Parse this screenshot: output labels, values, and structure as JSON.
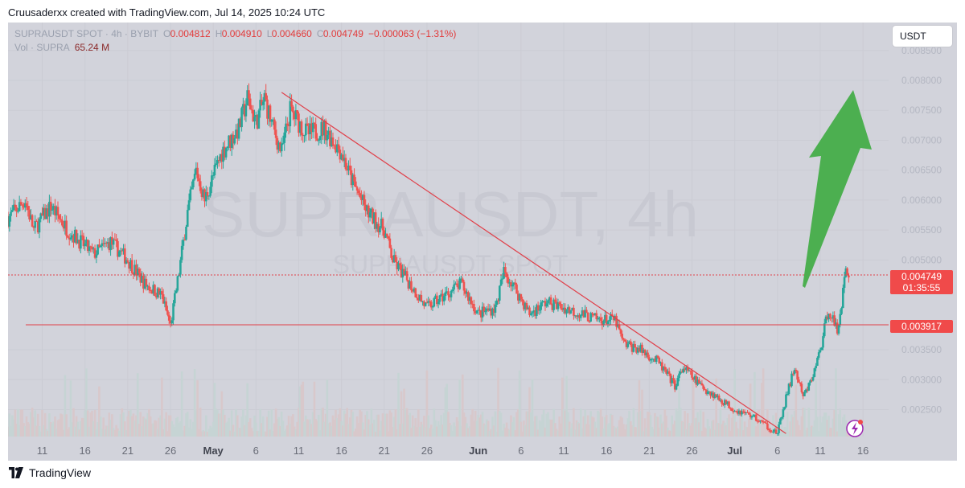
{
  "caption": "Cruusaderxx created with TradingView.com, Jul 14, 2025 10:24 UTC",
  "legend": {
    "symbol": "SUPRAUSDT SPOT · 4h · BYBIT",
    "o_label": "O",
    "o_value": "0.004812",
    "h_label": "H",
    "h_value": "0.004910",
    "l_label": "L",
    "l_value": "0.004660",
    "c_label": "C",
    "c_value": "0.004749",
    "change": "−0.000063 (−1.31%)",
    "vol_label": "Vol · SUPRA",
    "vol_value": "65.24 M"
  },
  "currency_button": "USDT",
  "watermark": {
    "line1": "SUPRAUSDT, 4h",
    "line2": "SUPRAUSDT SPOT"
  },
  "price_labels": {
    "last_price": "0.004749",
    "countdown": "01:35:55",
    "level": "0.003917"
  },
  "brand": "TradingView",
  "colors": {
    "background": "#d2d3db",
    "up": "#26a69a",
    "down": "#ef5350",
    "trendline": "#e0404a",
    "arrow": "#4caf50",
    "label_red": "#f04a4a"
  },
  "chart_data": {
    "type": "candlestick",
    "symbol": "SUPRAUSDT",
    "exchange": "BYBIT",
    "interval": "4h",
    "yaxis": {
      "ticks": [
        "0.008500",
        "0.008000",
        "0.007500",
        "0.007000",
        "0.006500",
        "0.006000",
        "0.005500",
        "0.005000",
        "0.003500",
        "0.003000",
        "0.002500"
      ],
      "tick_values": [
        0.0085,
        0.008,
        0.0075,
        0.007,
        0.0065,
        0.006,
        0.0055,
        0.005,
        0.0035,
        0.003,
        0.0025
      ],
      "range": [
        0.00205,
        0.0089
      ]
    },
    "xaxis": {
      "ticks": [
        "11",
        "16",
        "21",
        "26",
        "May",
        "6",
        "11",
        "16",
        "21",
        "26",
        "Jun",
        "6",
        "11",
        "16",
        "21",
        "26",
        "Jul",
        "6",
        "11",
        "16"
      ],
      "tick_dates": [
        "2025-04-11",
        "2025-04-16",
        "2025-04-21",
        "2025-04-26",
        "2025-05-01",
        "2025-05-06",
        "2025-05-11",
        "2025-05-16",
        "2025-05-21",
        "2025-05-26",
        "2025-06-01",
        "2025-06-06",
        "2025-06-11",
        "2025-06-16",
        "2025-06-21",
        "2025-06-26",
        "2025-07-01",
        "2025-07-06",
        "2025-07-11",
        "2025-07-16"
      ],
      "range": [
        "2025-04-07",
        "2025-07-19"
      ]
    },
    "close_path": [
      [
        "2025-04-07",
        0.0057
      ],
      [
        "2025-04-09",
        0.006
      ],
      [
        "2025-04-10",
        0.0055
      ],
      [
        "2025-04-12",
        0.0059
      ],
      [
        "2025-04-14",
        0.0055
      ],
      [
        "2025-04-17",
        0.0051
      ],
      [
        "2025-04-19",
        0.0053
      ],
      [
        "2025-04-21",
        0.005
      ],
      [
        "2025-04-23",
        0.0046
      ],
      [
        "2025-04-25",
        0.0044
      ],
      [
        "2025-04-26",
        0.0039
      ],
      [
        "2025-04-27",
        0.0048
      ],
      [
        "2025-04-28",
        0.0058
      ],
      [
        "2025-04-29",
        0.0065
      ],
      [
        "2025-04-30",
        0.006
      ],
      [
        "2025-05-02",
        0.0068
      ],
      [
        "2025-05-04",
        0.0072
      ],
      [
        "2025-05-05",
        0.0077
      ],
      [
        "2025-05-06",
        0.0073
      ],
      [
        "2025-05-07",
        0.0077
      ],
      [
        "2025-05-08",
        0.0072
      ],
      [
        "2025-05-09",
        0.0068
      ],
      [
        "2025-05-10",
        0.0075
      ],
      [
        "2025-05-12",
        0.0071
      ],
      [
        "2025-05-14",
        0.0072
      ],
      [
        "2025-05-16",
        0.0068
      ],
      [
        "2025-05-17",
        0.0064
      ],
      [
        "2025-05-19",
        0.0058
      ],
      [
        "2025-05-21",
        0.0055
      ],
      [
        "2025-05-22",
        0.005
      ],
      [
        "2025-05-24",
        0.0046
      ],
      [
        "2025-05-26",
        0.0042
      ],
      [
        "2025-05-28",
        0.0044
      ],
      [
        "2025-05-30",
        0.0046
      ],
      [
        "2025-06-01",
        0.0041
      ],
      [
        "2025-06-03",
        0.0042
      ],
      [
        "2025-06-04",
        0.0048
      ],
      [
        "2025-06-05",
        0.0046
      ],
      [
        "2025-06-07",
        0.0041
      ],
      [
        "2025-06-09",
        0.0043
      ],
      [
        "2025-06-11",
        0.0042
      ],
      [
        "2025-06-13",
        0.0041
      ],
      [
        "2025-06-15",
        0.004
      ],
      [
        "2025-06-17",
        0.004
      ],
      [
        "2025-06-18",
        0.0036
      ],
      [
        "2025-06-20",
        0.0035
      ],
      [
        "2025-06-22",
        0.0033
      ],
      [
        "2025-06-24",
        0.0029
      ],
      [
        "2025-06-25",
        0.0032
      ],
      [
        "2025-06-27",
        0.0029
      ],
      [
        "2025-06-29",
        0.0027
      ],
      [
        "2025-07-01",
        0.0025
      ],
      [
        "2025-07-03",
        0.0024
      ],
      [
        "2025-07-05",
        0.0022
      ],
      [
        "2025-07-06",
        0.0021
      ],
      [
        "2025-07-07",
        0.0027
      ],
      [
        "2025-07-08",
        0.0032
      ],
      [
        "2025-07-09",
        0.0027
      ],
      [
        "2025-07-10",
        0.003
      ],
      [
        "2025-07-11",
        0.0035
      ],
      [
        "2025-07-12",
        0.0042
      ],
      [
        "2025-07-13",
        0.0038
      ],
      [
        "2025-07-14",
        0.0048
      ],
      [
        "2025-07-14T08",
        0.004749
      ]
    ],
    "last_price": 0.004749,
    "horizontal_line": 0.003917,
    "trendline": {
      "from": [
        "2025-05-09",
        0.0078
      ],
      "to": [
        "2025-07-07",
        0.0021
      ]
    },
    "annotation": "green arrow pointing up"
  }
}
